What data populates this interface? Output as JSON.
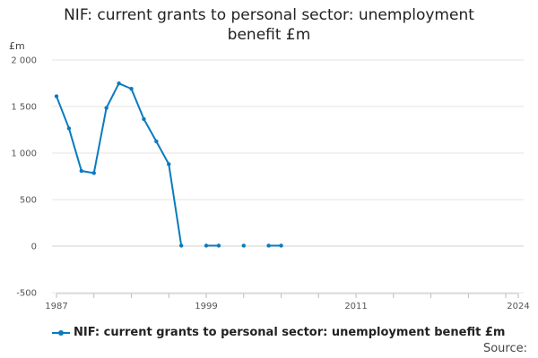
{
  "chart_data": {
    "type": "line",
    "title": "NIF: current grants to personal sector: unemployment benefit £m",
    "ylabel": "£m",
    "xlabel": "",
    "ylim": [
      -500,
      2000
    ],
    "xlim": [
      1987,
      2024
    ],
    "yticks": [
      2000,
      1500,
      1000,
      500,
      0,
      -500
    ],
    "ytick_labels": [
      "2 000",
      "1 500",
      "1 000",
      "500",
      "0",
      "-500"
    ],
    "xtick_labels": [
      "1987",
      "1999",
      "2011",
      "2024"
    ],
    "xtick_values": [
      1987,
      1999,
      2011,
      2024
    ],
    "grid": true,
    "legend_position": "bottom",
    "colors": {
      "series": "#0a7bbf",
      "grid": "#e6e6e6",
      "axis": "#cccccc"
    },
    "series": [
      {
        "name": "NIF: current grants to personal sector: unemployment benefit £m",
        "points": [
          [
            1987,
            1610
          ],
          [
            1988,
            1265
          ],
          [
            1989,
            808
          ],
          [
            1990,
            785
          ],
          [
            1991,
            1485
          ],
          [
            1992,
            1748
          ],
          [
            1993,
            1690
          ],
          [
            1994,
            1365
          ],
          [
            1995,
            1125
          ],
          [
            1996,
            880
          ],
          [
            1997,
            5
          ],
          [
            1999,
            5
          ],
          [
            2000,
            5
          ],
          [
            2002,
            5
          ],
          [
            2004,
            5
          ],
          [
            2005,
            5
          ]
        ],
        "segments": [
          [
            0,
            10
          ],
          [
            11,
            12
          ],
          [
            13,
            13
          ],
          [
            14,
            15
          ]
        ]
      }
    ]
  },
  "source_label": "Source:"
}
